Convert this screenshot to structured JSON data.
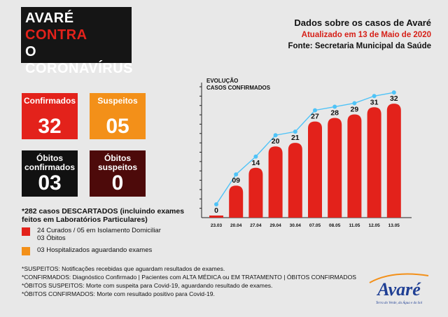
{
  "header": {
    "title_lines": [
      "AVARÉ",
      "CONTRA",
      "O CORONAVÍRUS"
    ],
    "info_title": "Dados sobre os casos de Avaré",
    "updated": "Atualizado em 13 de Maio de 2020",
    "source": "Fonte: Secretaria Municipal da Saúde"
  },
  "cards": {
    "confirmados": {
      "label": "Confirmados",
      "value": "32"
    },
    "suspeitos": {
      "label": "Suspeitos",
      "value": "05"
    },
    "obitos_confirmados": {
      "label_1": "Óbitos",
      "label_2": "confirmados",
      "value": "03"
    },
    "obitos_suspeitos": {
      "label_1": "Óbitos",
      "label_2": "suspeitos",
      "value": "0"
    }
  },
  "descartados": "*282 casos DESCARTADOS (incluindo exames feitos em Laboratórios Particulares)",
  "legend": {
    "item1_line1": "24 Curados / 05 em Isolamento Domiciliar",
    "item1_line2": "03 Óbitos",
    "item2": "03 Hospitalizados aguardando exames"
  },
  "notes": [
    "*SUSPEITOS: Notificações recebidas que aguardam resultados de exames.",
    "*CONFIRMADOS: Diagnóstico Confirmado | Pacientes com ALTA MÉDICA ou EM TRATAMENTO | ÓBITOS CONFIRMADOS",
    "*ÓBITOS SUSPEITOS: Morte com suspeita para Covid-19, aguardando resultado de exames.",
    "*ÓBITOS CONFIRMADOS: Morte com resultado positivo para Covid-19."
  ],
  "logo": {
    "text": "Avaré",
    "tagline": "Terra do Verde, da Água e do Sol"
  },
  "colors": {
    "red": "#e3221b",
    "orange": "#f39019",
    "black": "#111111",
    "dark_red": "#4d0a0a",
    "line": "#4fc3f7",
    "logo_blue": "#1f3f94"
  },
  "chart_data": {
    "type": "bar",
    "title_line1": "EVOLUÇÃO",
    "title_line2": "CASOS CONFIRMADOS",
    "categories": [
      "23.03",
      "20.04",
      "27.04",
      "29.04",
      "30.04",
      "07.05",
      "08.05",
      "11.05",
      "12.05",
      "13.05"
    ],
    "values": [
      0,
      9,
      14,
      20,
      21,
      27,
      28,
      29,
      31,
      32
    ],
    "value_labels": [
      "0",
      "09",
      "14",
      "20",
      "21",
      "27",
      "28",
      "29",
      "31",
      "32"
    ],
    "ylim": [
      0,
      34
    ],
    "grid": false,
    "overlay_line": true
  }
}
